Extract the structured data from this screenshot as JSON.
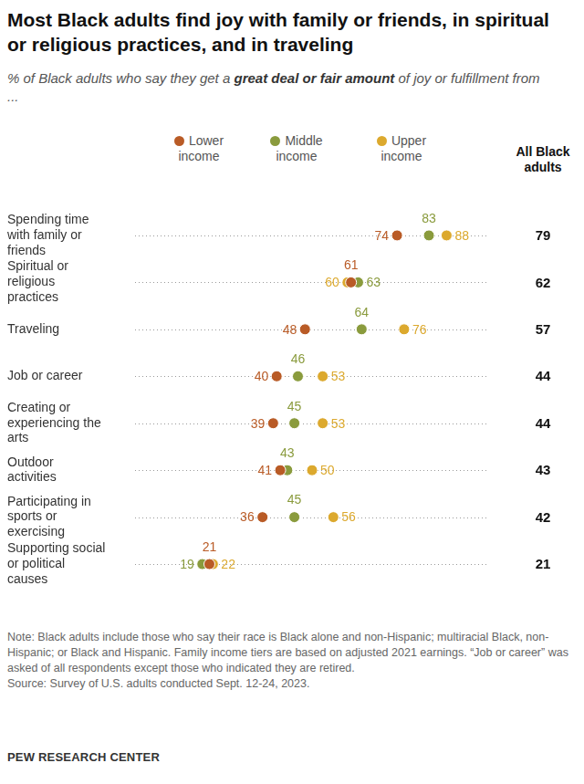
{
  "chart_data": {
    "type": "dot",
    "title": "Most Black adults find joy with family or friends, in spiritual or religious practices, and in traveling",
    "subtitle": "% of Black adults who say they get a great deal or fair amount of joy or fulfillment from ...",
    "subtitle_emphasis": "great deal or fair amount",
    "categories": [
      "Spending time with family or friends",
      "Spiritual or religious practices",
      "Traveling",
      "Job or career",
      "Creating or experiencing the arts",
      "Outdoor activities",
      "Participating in sports or exercising",
      "Supporting social or political causes"
    ],
    "series": [
      {
        "name": "Lower income",
        "color": "#b95b26",
        "values": [
          74,
          61,
          48,
          40,
          39,
          41,
          36,
          21
        ]
      },
      {
        "name": "Middle income",
        "color": "#8a9b3d",
        "values": [
          83,
          63,
          64,
          46,
          45,
          43,
          45,
          19
        ]
      },
      {
        "name": "Upper income",
        "color": "#dca92e",
        "values": [
          88,
          60,
          76,
          53,
          53,
          50,
          56,
          22
        ]
      },
      {
        "name": "All Black adults",
        "type": "text",
        "values": [
          79,
          62,
          57,
          44,
          44,
          43,
          42,
          21
        ]
      }
    ],
    "orientation": "horizontal",
    "xlim": [
      0,
      100
    ],
    "grid": false,
    "data_labels": true,
    "tick_labels": "y",
    "note": "Note: Black adults include those who say their race is Black alone and non-Hispanic; multiracial Black, non-Hispanic; or Black and Hispanic. Family income tiers are based on adjusted 2021 earnings. “Job or career” was asked of all respondents except those who indicated they are retired.",
    "source": "Source: Survey of U.S. adults conducted Sept. 12-24, 2023.",
    "credit": "PEW RESEARCH CENTER"
  }
}
